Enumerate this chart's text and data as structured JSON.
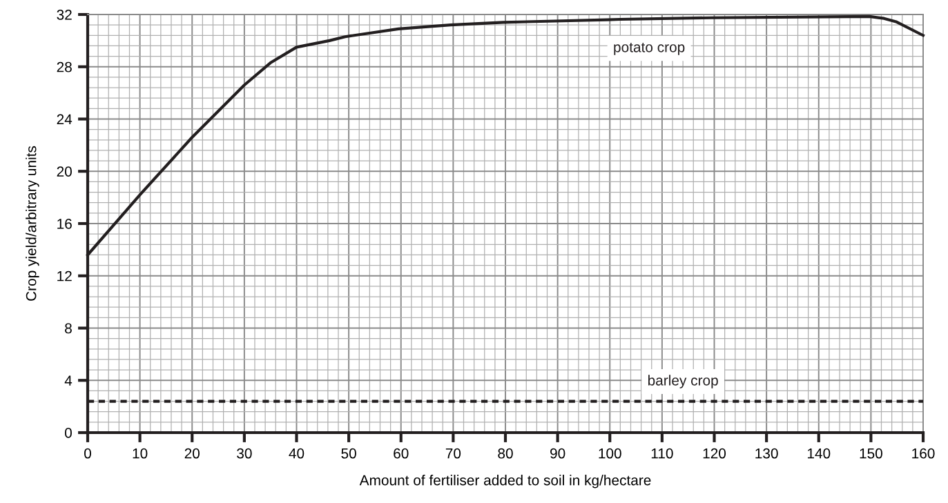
{
  "chart_data": {
    "type": "line",
    "xlabel": "Amount of fertiliser added to soil in kg/hectare",
    "ylabel": "Crop yield/arbitrary units",
    "xlim": [
      0,
      160
    ],
    "ylim": [
      0,
      32
    ],
    "xticks": [
      0,
      10,
      20,
      30,
      40,
      50,
      60,
      70,
      80,
      90,
      100,
      110,
      120,
      130,
      140,
      150,
      160
    ],
    "yticks": [
      0,
      4,
      8,
      12,
      16,
      20,
      24,
      28,
      32
    ],
    "grid": true,
    "marker": "none",
    "series": [
      {
        "name": "potato crop",
        "color": "#231f20",
        "line_style": "solid",
        "x": [
          0,
          10,
          20,
          30,
          35,
          40,
          46.3,
          49.3,
          59.5,
          69.5,
          79.6,
          89.5,
          99.5,
          102,
          119.5,
          149.7,
          152.5,
          154.8,
          160
        ],
        "values": [
          13.6,
          18.2,
          22.6,
          26.6,
          28.3,
          29.5,
          30.0,
          30.3,
          30.9,
          31.2,
          31.4,
          31.5,
          31.6,
          31.63,
          31.75,
          31.85,
          31.7,
          31.45,
          30.4
        ]
      },
      {
        "name": "barley crop",
        "color": "#231f20",
        "line_style": "dashed",
        "x": [
          0,
          160
        ],
        "values": [
          2.4,
          2.4
        ]
      }
    ]
  }
}
